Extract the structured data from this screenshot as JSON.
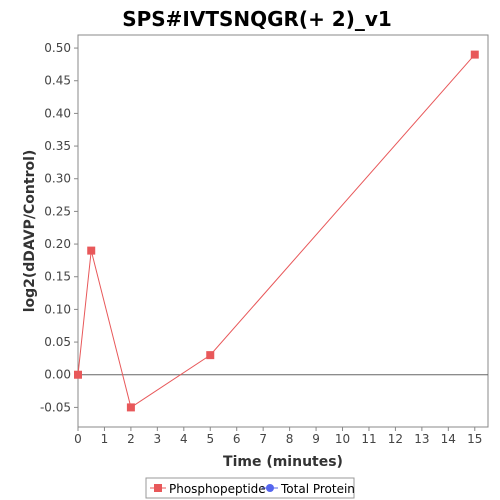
{
  "chart_data": {
    "type": "line",
    "title": "SPS#IVTSNQGR(+ 2)_v1",
    "xlabel": "Time (minutes)",
    "ylabel": "log2(dDAVP/Control)",
    "xlim": [
      0,
      15.5
    ],
    "ylim": [
      -0.08,
      0.52
    ],
    "xticks": [
      0,
      1,
      2,
      3,
      4,
      5,
      6,
      7,
      8,
      9,
      10,
      11,
      12,
      13,
      14,
      15
    ],
    "yticks": [
      -0.05,
      0.0,
      0.05,
      0.1,
      0.15,
      0.2,
      0.25,
      0.3,
      0.35,
      0.4,
      0.45,
      0.5
    ],
    "ytick_labels": [
      "-0.05",
      "0.00",
      "0.05",
      "0.10",
      "0.15",
      "0.20",
      "0.25",
      "0.30",
      "0.35",
      "0.40",
      "0.45",
      "0.50"
    ],
    "grid": false,
    "zero_line": true,
    "legend_position": "bottom",
    "series": [
      {
        "name": "Phosphopeptide",
        "color": "#e8585a",
        "marker": "square",
        "x": [
          0,
          0.5,
          2,
          5,
          15
        ],
        "y": [
          0.0,
          0.19,
          -0.05,
          0.03,
          0.49
        ]
      },
      {
        "name": "Total Protein",
        "color": "#5566ee",
        "marker": "circle",
        "x": [],
        "y": []
      }
    ]
  }
}
